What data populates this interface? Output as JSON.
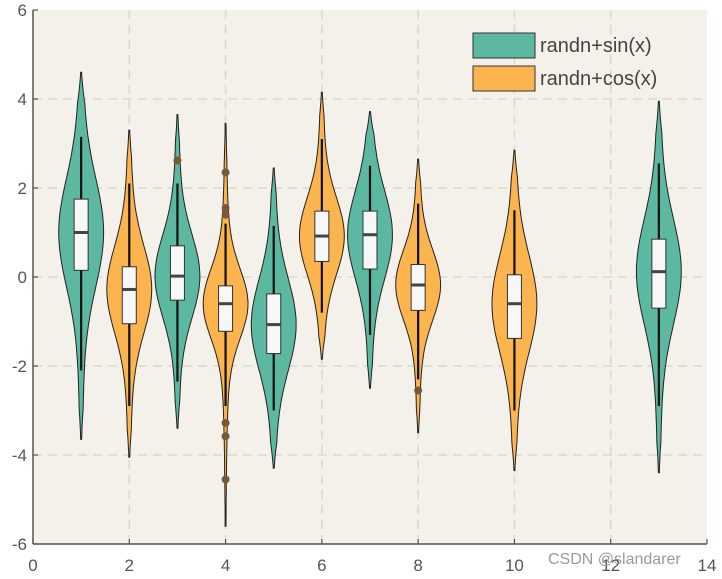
{
  "chart_data": {
    "type": "violin",
    "xlim": [
      0,
      14
    ],
    "ylim": [
      -6,
      6
    ],
    "xticks": [
      0,
      2,
      4,
      6,
      8,
      10,
      12,
      14
    ],
    "yticks": [
      -6,
      -4,
      -2,
      0,
      2,
      4,
      6
    ],
    "grid": true,
    "legend_position": "top-right",
    "colors": {
      "sin": "#5cb8a0",
      "cos": "#fbb44e",
      "plot_bg": "#f4f1ea",
      "grid": "#dcd8cc",
      "outlier": "#7a5a35"
    },
    "series": [
      {
        "name": "randn+sin(x)",
        "color_key": "sin"
      },
      {
        "name": "randn+cos(x)",
        "color_key": "cos"
      }
    ],
    "violins": [
      {
        "x": 1,
        "series": "randn+sin(x)",
        "min": -3.65,
        "max": 4.6,
        "q1": 0.15,
        "median": 1.0,
        "q3": 1.75,
        "w_low": -2.1,
        "w_high": 3.15,
        "outliers": []
      },
      {
        "x": 2,
        "series": "randn+cos(x)",
        "min": -4.05,
        "max": 3.3,
        "q1": -1.05,
        "median": -0.28,
        "q3": 0.23,
        "w_low": -2.9,
        "w_high": 2.1,
        "outliers": []
      },
      {
        "x": 3,
        "series": "randn+sin(x)",
        "min": -3.4,
        "max": 3.65,
        "q1": -0.52,
        "median": 0.02,
        "q3": 0.7,
        "w_low": -2.35,
        "w_high": 2.1,
        "outliers": [
          2.62
        ]
      },
      {
        "x": 4,
        "series": "randn+cos(x)",
        "min": -5.6,
        "max": 3.45,
        "q1": -1.22,
        "median": -0.6,
        "q3": -0.2,
        "w_low": -2.9,
        "w_high": 1.2,
        "outliers": [
          2.35,
          1.55,
          1.4,
          -3.28,
          -3.58,
          -4.55
        ]
      },
      {
        "x": 5,
        "series": "randn+sin(x)",
        "min": -4.3,
        "max": 2.45,
        "q1": -1.72,
        "median": -1.07,
        "q3": -0.38,
        "w_low": -3.0,
        "w_high": 1.15,
        "outliers": []
      },
      {
        "x": 6,
        "series": "randn+cos(x)",
        "min": -1.85,
        "max": 4.15,
        "q1": 0.35,
        "median": 0.92,
        "q3": 1.48,
        "w_low": -0.8,
        "w_high": 3.1,
        "outliers": []
      },
      {
        "x": 7,
        "series": "randn+sin(x)",
        "min": -2.5,
        "max": 3.72,
        "q1": 0.18,
        "median": 0.95,
        "q3": 1.48,
        "w_low": -1.3,
        "w_high": 2.5,
        "outliers": []
      },
      {
        "x": 8,
        "series": "randn+cos(x)",
        "min": -3.5,
        "max": 2.65,
        "q1": -0.75,
        "median": -0.18,
        "q3": 0.28,
        "w_low": -2.3,
        "w_high": 1.65,
        "outliers": [
          -2.55
        ]
      },
      {
        "x": 10,
        "series": "randn+cos(x)",
        "min": -4.35,
        "max": 2.85,
        "q1": -1.38,
        "median": -0.6,
        "q3": 0.05,
        "w_low": -3.0,
        "w_high": 1.5,
        "outliers": []
      },
      {
        "x": 13,
        "series": "randn+sin(x)",
        "min": -4.4,
        "max": 3.95,
        "q1": -0.7,
        "median": 0.12,
        "q3": 0.85,
        "w_low": -2.9,
        "w_high": 2.55,
        "outliers": []
      }
    ]
  },
  "watermark": "CSDN @slandarer"
}
